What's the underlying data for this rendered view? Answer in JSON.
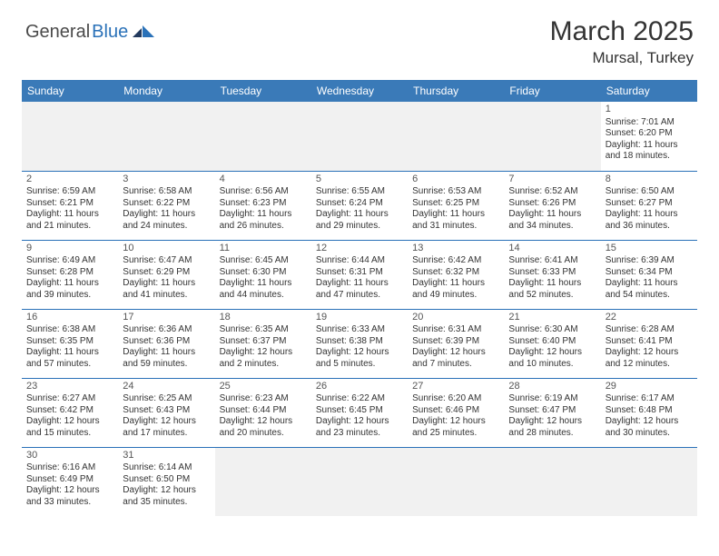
{
  "logo": {
    "text_dark": "General",
    "text_blue": "Blue"
  },
  "title": "March 2025",
  "location": "Mursal, Turkey",
  "colors": {
    "header_bg": "#3a7ab8",
    "header_text": "#ffffff",
    "cell_border": "#2a71b8",
    "body_text": "#333333",
    "daynum_text": "#555555",
    "empty_bg": "#f1f1f1",
    "logo_dark": "#4a4a4a",
    "logo_blue": "#2a71b8"
  },
  "day_headers": [
    "Sunday",
    "Monday",
    "Tuesday",
    "Wednesday",
    "Thursday",
    "Friday",
    "Saturday"
  ],
  "weeks": [
    [
      null,
      null,
      null,
      null,
      null,
      null,
      {
        "n": "1",
        "sr": "Sunrise: 7:01 AM",
        "ss": "Sunset: 6:20 PM",
        "dl": "Daylight: 11 hours and 18 minutes."
      }
    ],
    [
      {
        "n": "2",
        "sr": "Sunrise: 6:59 AM",
        "ss": "Sunset: 6:21 PM",
        "dl": "Daylight: 11 hours and 21 minutes."
      },
      {
        "n": "3",
        "sr": "Sunrise: 6:58 AM",
        "ss": "Sunset: 6:22 PM",
        "dl": "Daylight: 11 hours and 24 minutes."
      },
      {
        "n": "4",
        "sr": "Sunrise: 6:56 AM",
        "ss": "Sunset: 6:23 PM",
        "dl": "Daylight: 11 hours and 26 minutes."
      },
      {
        "n": "5",
        "sr": "Sunrise: 6:55 AM",
        "ss": "Sunset: 6:24 PM",
        "dl": "Daylight: 11 hours and 29 minutes."
      },
      {
        "n": "6",
        "sr": "Sunrise: 6:53 AM",
        "ss": "Sunset: 6:25 PM",
        "dl": "Daylight: 11 hours and 31 minutes."
      },
      {
        "n": "7",
        "sr": "Sunrise: 6:52 AM",
        "ss": "Sunset: 6:26 PM",
        "dl": "Daylight: 11 hours and 34 minutes."
      },
      {
        "n": "8",
        "sr": "Sunrise: 6:50 AM",
        "ss": "Sunset: 6:27 PM",
        "dl": "Daylight: 11 hours and 36 minutes."
      }
    ],
    [
      {
        "n": "9",
        "sr": "Sunrise: 6:49 AM",
        "ss": "Sunset: 6:28 PM",
        "dl": "Daylight: 11 hours and 39 minutes."
      },
      {
        "n": "10",
        "sr": "Sunrise: 6:47 AM",
        "ss": "Sunset: 6:29 PM",
        "dl": "Daylight: 11 hours and 41 minutes."
      },
      {
        "n": "11",
        "sr": "Sunrise: 6:45 AM",
        "ss": "Sunset: 6:30 PM",
        "dl": "Daylight: 11 hours and 44 minutes."
      },
      {
        "n": "12",
        "sr": "Sunrise: 6:44 AM",
        "ss": "Sunset: 6:31 PM",
        "dl": "Daylight: 11 hours and 47 minutes."
      },
      {
        "n": "13",
        "sr": "Sunrise: 6:42 AM",
        "ss": "Sunset: 6:32 PM",
        "dl": "Daylight: 11 hours and 49 minutes."
      },
      {
        "n": "14",
        "sr": "Sunrise: 6:41 AM",
        "ss": "Sunset: 6:33 PM",
        "dl": "Daylight: 11 hours and 52 minutes."
      },
      {
        "n": "15",
        "sr": "Sunrise: 6:39 AM",
        "ss": "Sunset: 6:34 PM",
        "dl": "Daylight: 11 hours and 54 minutes."
      }
    ],
    [
      {
        "n": "16",
        "sr": "Sunrise: 6:38 AM",
        "ss": "Sunset: 6:35 PM",
        "dl": "Daylight: 11 hours and 57 minutes."
      },
      {
        "n": "17",
        "sr": "Sunrise: 6:36 AM",
        "ss": "Sunset: 6:36 PM",
        "dl": "Daylight: 11 hours and 59 minutes."
      },
      {
        "n": "18",
        "sr": "Sunrise: 6:35 AM",
        "ss": "Sunset: 6:37 PM",
        "dl": "Daylight: 12 hours and 2 minutes."
      },
      {
        "n": "19",
        "sr": "Sunrise: 6:33 AM",
        "ss": "Sunset: 6:38 PM",
        "dl": "Daylight: 12 hours and 5 minutes."
      },
      {
        "n": "20",
        "sr": "Sunrise: 6:31 AM",
        "ss": "Sunset: 6:39 PM",
        "dl": "Daylight: 12 hours and 7 minutes."
      },
      {
        "n": "21",
        "sr": "Sunrise: 6:30 AM",
        "ss": "Sunset: 6:40 PM",
        "dl": "Daylight: 12 hours and 10 minutes."
      },
      {
        "n": "22",
        "sr": "Sunrise: 6:28 AM",
        "ss": "Sunset: 6:41 PM",
        "dl": "Daylight: 12 hours and 12 minutes."
      }
    ],
    [
      {
        "n": "23",
        "sr": "Sunrise: 6:27 AM",
        "ss": "Sunset: 6:42 PM",
        "dl": "Daylight: 12 hours and 15 minutes."
      },
      {
        "n": "24",
        "sr": "Sunrise: 6:25 AM",
        "ss": "Sunset: 6:43 PM",
        "dl": "Daylight: 12 hours and 17 minutes."
      },
      {
        "n": "25",
        "sr": "Sunrise: 6:23 AM",
        "ss": "Sunset: 6:44 PM",
        "dl": "Daylight: 12 hours and 20 minutes."
      },
      {
        "n": "26",
        "sr": "Sunrise: 6:22 AM",
        "ss": "Sunset: 6:45 PM",
        "dl": "Daylight: 12 hours and 23 minutes."
      },
      {
        "n": "27",
        "sr": "Sunrise: 6:20 AM",
        "ss": "Sunset: 6:46 PM",
        "dl": "Daylight: 12 hours and 25 minutes."
      },
      {
        "n": "28",
        "sr": "Sunrise: 6:19 AM",
        "ss": "Sunset: 6:47 PM",
        "dl": "Daylight: 12 hours and 28 minutes."
      },
      {
        "n": "29",
        "sr": "Sunrise: 6:17 AM",
        "ss": "Sunset: 6:48 PM",
        "dl": "Daylight: 12 hours and 30 minutes."
      }
    ],
    [
      {
        "n": "30",
        "sr": "Sunrise: 6:16 AM",
        "ss": "Sunset: 6:49 PM",
        "dl": "Daylight: 12 hours and 33 minutes."
      },
      {
        "n": "31",
        "sr": "Sunrise: 6:14 AM",
        "ss": "Sunset: 6:50 PM",
        "dl": "Daylight: 12 hours and 35 minutes."
      },
      null,
      null,
      null,
      null,
      null
    ]
  ]
}
